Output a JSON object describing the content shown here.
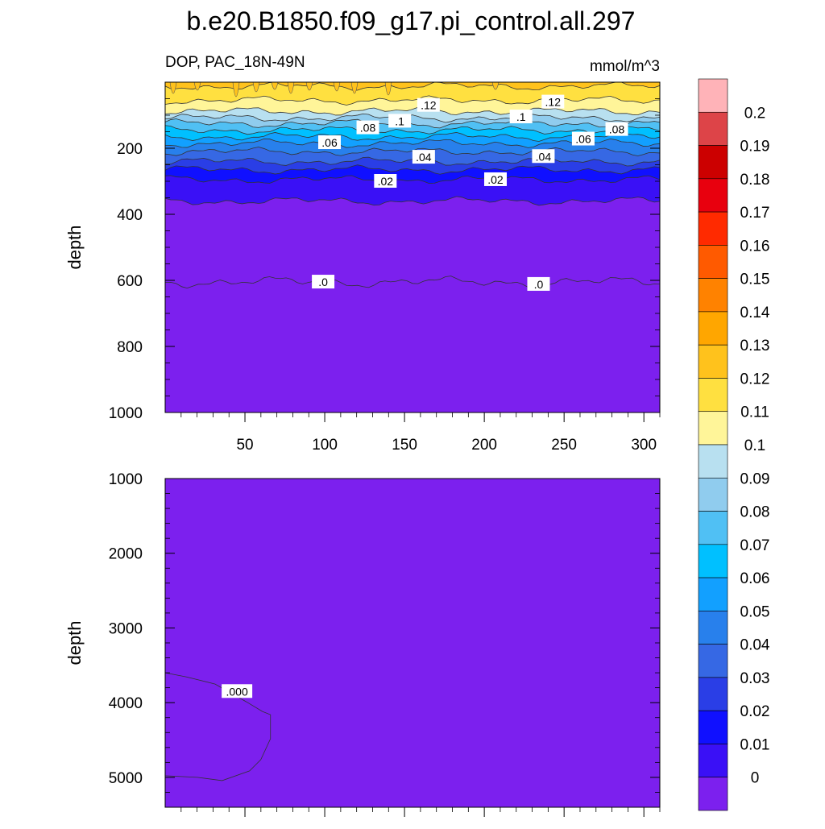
{
  "title": "b.e20.B1850.f09_g17.pi_control.all.297",
  "subtitle_left": "DOP, PAC_18N-49N",
  "subtitle_right": "mmol/m^3",
  "chart_data": [
    {
      "type": "contour",
      "name": "upper-panel",
      "ylabel": "depth",
      "xlim": [
        0,
        310
      ],
      "ylim": [
        0,
        1000
      ],
      "y_reversed": true,
      "xticks": [
        50,
        100,
        150,
        200,
        250,
        300
      ],
      "yticks": [
        200,
        400,
        600,
        800,
        1000
      ],
      "bands": [
        {
          "upper": 0.14,
          "lower": 0.13,
          "depth_top": 10,
          "depth_bottom": 12
        },
        {
          "upper": 0.13,
          "lower": 0.12,
          "depth_top": 12,
          "depth_bottom": 55
        },
        {
          "upper": 0.12,
          "lower": 0.11,
          "depth_top": 55,
          "depth_bottom": 88
        },
        {
          "upper": 0.11,
          "lower": 0.1,
          "depth_top": 88,
          "depth_bottom": 108
        },
        {
          "upper": 0.1,
          "lower": 0.09,
          "depth_top": 108,
          "depth_bottom": 125
        },
        {
          "upper": 0.09,
          "lower": 0.08,
          "depth_top": 125,
          "depth_bottom": 145
        },
        {
          "upper": 0.08,
          "lower": 0.07,
          "depth_top": 145,
          "depth_bottom": 165
        },
        {
          "upper": 0.07,
          "lower": 0.06,
          "depth_top": 165,
          "depth_bottom": 185
        },
        {
          "upper": 0.06,
          "lower": 0.05,
          "depth_top": 185,
          "depth_bottom": 210
        },
        {
          "upper": 0.05,
          "lower": 0.04,
          "depth_top": 210,
          "depth_bottom": 240
        },
        {
          "upper": 0.04,
          "lower": 0.03,
          "depth_top": 240,
          "depth_bottom": 265
        },
        {
          "upper": 0.03,
          "lower": 0.02,
          "depth_top": 265,
          "depth_bottom": 295
        },
        {
          "upper": 0.02,
          "lower": 0.01,
          "depth_top": 295,
          "depth_bottom": 360
        },
        {
          "upper": 0.01,
          "lower": 0.0,
          "depth_top": 360,
          "depth_bottom": 605
        },
        {
          "upper": 0.0,
          "lower": -0.01,
          "depth_top": 605,
          "depth_bottom": 1000
        }
      ],
      "contour_labels": [
        {
          "text": ".12",
          "x": 165,
          "depth": 70
        },
        {
          "text": ".12",
          "x": 243,
          "depth": 60
        },
        {
          "text": ".1",
          "x": 147,
          "depth": 118
        },
        {
          "text": ".1",
          "x": 223,
          "depth": 105
        },
        {
          "text": ".08",
          "x": 127,
          "depth": 138
        },
        {
          "text": ".08",
          "x": 283,
          "depth": 143
        },
        {
          "text": ".06",
          "x": 103,
          "depth": 183
        },
        {
          "text": ".06",
          "x": 262,
          "depth": 172
        },
        {
          "text": ".04",
          "x": 162,
          "depth": 227
        },
        {
          "text": ".04",
          "x": 237,
          "depth": 225
        },
        {
          "text": ".02",
          "x": 138,
          "depth": 300
        },
        {
          "text": ".02",
          "x": 207,
          "depth": 295
        },
        {
          "text": ".0",
          "x": 99,
          "depth": 605
        },
        {
          "text": ".0",
          "x": 234,
          "depth": 612
        }
      ]
    },
    {
      "type": "contour",
      "name": "lower-panel",
      "ylabel": "depth",
      "xlim": [
        0,
        310
      ],
      "ylim": [
        1000,
        5400
      ],
      "y_reversed": true,
      "yticks": [
        1000,
        2000,
        3000,
        4000,
        5000
      ],
      "background_value_range": [
        -0.01,
        0.0
      ],
      "region": {
        "upper": 0.01,
        "lower": 0.0,
        "x_range": [
          0,
          66
        ],
        "depth_range": [
          3600,
          5000
        ]
      },
      "contour_labels": [
        {
          "text": ".000",
          "x": 45,
          "depth": 3850
        }
      ]
    },
    {
      "type": "colorbar",
      "name": "colorbar",
      "levels": [
        "0.2",
        "0.19",
        "0.18",
        "0.17",
        "0.16",
        "0.15",
        "0.14",
        "0.13",
        "0.12",
        "0.11",
        "0.1",
        "0.09",
        "0.08",
        "0.07",
        "0.06",
        "0.05",
        "0.04",
        "0.03",
        "0.02",
        "0.01",
        "0"
      ],
      "colors": [
        "#ffb3b8",
        "#dd4448",
        "#cc0000",
        "#e8000e",
        "#ff2a00",
        "#ff5a00",
        "#ff8200",
        "#ffa600",
        "#ffc21c",
        "#ffe040",
        "#fff599",
        "#b8e0f0",
        "#90ccee",
        "#50c0f4",
        "#00c0ff",
        "#12a0ff",
        "#2880ec",
        "#3668e4",
        "#2a3ee6",
        "#1010ff",
        "#3a10f6",
        "#7c20ee"
      ]
    }
  ]
}
